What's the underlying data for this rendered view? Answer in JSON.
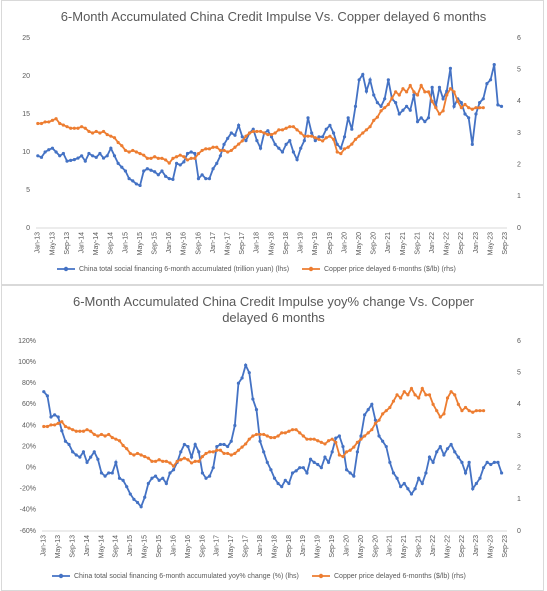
{
  "chart_data": [
    {
      "type": "line",
      "title": "6-Month Accumulated China Credit Impulse Vs. Copper delayed 6 months",
      "categories": [
        "Jan-13",
        null,
        null,
        null,
        "May-13",
        null,
        null,
        null,
        "Sep-13",
        null,
        null,
        null,
        "Jan-14",
        null,
        null,
        null,
        "May-14",
        null,
        null,
        null,
        "Sep-14",
        null,
        null,
        null,
        "Jan-15",
        null,
        null,
        null,
        "May-15",
        null,
        null,
        null,
        "Sep-15",
        null,
        null,
        null,
        "Jan-16",
        null,
        null,
        null,
        "May-16",
        null,
        null,
        null,
        "Sep-16",
        null,
        null,
        null,
        "Jan-17",
        null,
        null,
        null,
        "May-17",
        null,
        null,
        null,
        "Sep-17",
        null,
        null,
        null,
        "Jan-18",
        null,
        null,
        null,
        "May-18",
        null,
        null,
        null,
        "Sep-18",
        null,
        null,
        null,
        "Jan-19",
        null,
        null,
        null,
        "May-19",
        null,
        null,
        null,
        "Sep-19",
        null,
        null,
        null,
        "Jan-20",
        null,
        null,
        null,
        "May-20",
        null,
        null,
        null,
        "Sep-20",
        null,
        null,
        null,
        "Jan-21",
        null,
        null,
        null,
        "May-21",
        null,
        null,
        null,
        "Sep-21",
        null,
        null,
        null,
        "Jan-22",
        null,
        null,
        null,
        "May-22",
        null,
        null,
        null,
        "Sep-22",
        null,
        null,
        null,
        "Jan-23",
        null,
        null,
        null,
        "May-23",
        null,
        null,
        null,
        "Sep-23"
      ],
      "series": [
        {
          "name": "China total social financing 6-month accumulated (trillion yuan) (lhs)",
          "color": "#4472c4",
          "axis": "y",
          "values": [
            9.5,
            9.3,
            10,
            10.3,
            10.5,
            10,
            9.5,
            9.8,
            8.8,
            8.9,
            9,
            9.2,
            9.5,
            8.8,
            9.8,
            9.5,
            9.3,
            9.8,
            9.2,
            9.5,
            10.5,
            9.5,
            8.5,
            8,
            7.5,
            6.5,
            6.2,
            5.8,
            5.6,
            7.5,
            7.8,
            7.6,
            7.4,
            7,
            7.5,
            6.8,
            6.5,
            6.4,
            8.5,
            8.3,
            8.7,
            9.8,
            10,
            9.8,
            6.5,
            7,
            6.5,
            6.5,
            7.8,
            8.5,
            9.5,
            11,
            11.8,
            12.5,
            12.2,
            13.5,
            12,
            11.5,
            12.5,
            13,
            11.5,
            10.5,
            12.5,
            12.8,
            12,
            11,
            10.5,
            10,
            11,
            11.5,
            10,
            9,
            10.5,
            11.5,
            14.5,
            12.5,
            11.5,
            12,
            12,
            13,
            13.5,
            12.5,
            11,
            10.5,
            12,
            14.5,
            13,
            16,
            19.5,
            20.2,
            18,
            19.5,
            17.5,
            16.5,
            16,
            17,
            19.5,
            17,
            16.5,
            15,
            15.5,
            16,
            15.5,
            17.5,
            14,
            14.5,
            14,
            14.5,
            18.5,
            16,
            18.5,
            17,
            18,
            21,
            16,
            17,
            16.5,
            15,
            14.5,
            11,
            15,
            16.5,
            17,
            19,
            19.5,
            21.5,
            16.2,
            16,
            null
          ]
        },
        {
          "name": "Copper price delayed 6-months ($/lb) (rhs)",
          "color": "#ed7d31",
          "axis": "y2",
          "values": [
            3.3,
            3.3,
            3.35,
            3.35,
            3.4,
            3.45,
            3.3,
            3.25,
            3.2,
            3.15,
            3.15,
            3.15,
            3.2,
            3.15,
            3.05,
            3.0,
            3.05,
            3.0,
            3.05,
            2.95,
            2.9,
            2.85,
            2.7,
            2.6,
            2.45,
            2.4,
            2.45,
            2.4,
            2.35,
            2.3,
            2.2,
            2.2,
            2.25,
            2.2,
            2.2,
            2.15,
            2.05,
            2.2,
            2.25,
            2.3,
            2.25,
            2.15,
            2.2,
            2.2,
            2.35,
            2.45,
            2.5,
            2.5,
            2.55,
            2.55,
            2.45,
            2.45,
            2.4,
            2.45,
            2.55,
            2.65,
            2.75,
            2.9,
            3.0,
            3.05,
            3.05,
            3.05,
            3.0,
            2.95,
            2.95,
            3.0,
            3.1,
            3.1,
            3.15,
            3.2,
            3.2,
            3.1,
            3.0,
            2.9,
            2.9,
            2.9,
            2.85,
            2.8,
            2.75,
            2.85,
            2.9,
            2.8,
            2.4,
            2.35,
            2.5,
            2.55,
            2.65,
            2.8,
            2.9,
            3.0,
            3.1,
            3.2,
            3.4,
            3.5,
            3.7,
            3.8,
            3.9,
            4.1,
            4.3,
            4.2,
            4.4,
            4.3,
            4.5,
            4.3,
            4.2,
            4.5,
            4.3,
            4.3,
            4.0,
            3.8,
            3.6,
            3.7,
            4.2,
            4.4,
            4.3,
            4.0,
            3.8,
            3.9,
            3.8,
            3.75,
            3.8,
            3.8,
            3.8,
            null,
            null,
            null,
            null,
            null,
            null
          ]
        }
      ],
      "ylim": [
        0,
        25
      ],
      "yticks": [
        0,
        5,
        10,
        15,
        20,
        25
      ],
      "y2lim": [
        0,
        6
      ],
      "y2ticks": [
        0,
        1,
        2,
        3,
        4,
        5,
        6
      ],
      "grid": false
    },
    {
      "type": "line",
      "title": "6-Month Accumulated China Credit Impulse yoy% change Vs. Copper delayed 6 months",
      "categories": [
        "Jan-13",
        null,
        null,
        null,
        "May-13",
        null,
        null,
        null,
        "Sep-13",
        null,
        null,
        null,
        "Jan-14",
        null,
        null,
        null,
        "May-14",
        null,
        null,
        null,
        "Sep-14",
        null,
        null,
        null,
        "Jan-15",
        null,
        null,
        null,
        "May-15",
        null,
        null,
        null,
        "Sep-15",
        null,
        null,
        null,
        "Jan-16",
        null,
        null,
        null,
        "May-16",
        null,
        null,
        null,
        "Sep-16",
        null,
        null,
        null,
        "Jan-17",
        null,
        null,
        null,
        "May-17",
        null,
        null,
        null,
        "Sep-17",
        null,
        null,
        null,
        "Jan-18",
        null,
        null,
        null,
        "May-18",
        null,
        null,
        null,
        "Sep-18",
        null,
        null,
        null,
        "Jan-19",
        null,
        null,
        null,
        "May-19",
        null,
        null,
        null,
        "Sep-19",
        null,
        null,
        null,
        "Jan-20",
        null,
        null,
        null,
        "May-20",
        null,
        null,
        null,
        "Sep-20",
        null,
        null,
        null,
        "Jan-21",
        null,
        null,
        null,
        "May-21",
        null,
        null,
        null,
        "Sep-21",
        null,
        null,
        null,
        "Jan-22",
        null,
        null,
        null,
        "May-22",
        null,
        null,
        null,
        "Sep-22",
        null,
        null,
        null,
        "Jan-23",
        null,
        null,
        null,
        "May-23",
        null,
        null,
        null,
        "Sep-23"
      ],
      "series": [
        {
          "name": "China total social financing 6-month accumulated yoy% change (%) (lhs)",
          "color": "#4472c4",
          "axis": "y",
          "values": [
            72,
            68,
            48,
            50,
            48,
            35,
            25,
            22,
            15,
            12,
            10,
            15,
            5,
            10,
            15,
            8,
            -5,
            -8,
            -5,
            -5,
            5,
            -10,
            -12,
            -18,
            -25,
            -30,
            -33,
            -37,
            -28,
            -15,
            -10,
            -8,
            -12,
            -10,
            -15,
            -5,
            -2,
            5,
            15,
            22,
            20,
            10,
            22,
            15,
            -5,
            -10,
            -8,
            0,
            20,
            22,
            22,
            20,
            25,
            40,
            80,
            85,
            97,
            90,
            65,
            55,
            25,
            15,
            5,
            -2,
            -10,
            -15,
            -18,
            -12,
            -15,
            -5,
            -3,
            0,
            0,
            -5,
            8,
            5,
            3,
            0,
            10,
            5,
            15,
            28,
            30,
            20,
            -2,
            -5,
            -8,
            15,
            30,
            50,
            55,
            60,
            45,
            30,
            25,
            20,
            5,
            -5,
            -10,
            -18,
            -15,
            -20,
            -25,
            -20,
            -10,
            -15,
            -5,
            10,
            5,
            15,
            20,
            12,
            18,
            22,
            15,
            10,
            5,
            -5,
            5,
            -20,
            -15,
            -10,
            0,
            5,
            3,
            5,
            5,
            -5,
            null
          ]
        },
        {
          "name": "Copper price delayed 6-months ($/lb) (rhs)",
          "color": "#ed7d31",
          "axis": "y2",
          "values": [
            3.3,
            3.3,
            3.35,
            3.35,
            3.4,
            3.45,
            3.3,
            3.25,
            3.2,
            3.15,
            3.15,
            3.15,
            3.2,
            3.15,
            3.05,
            3.0,
            3.05,
            3.0,
            3.05,
            2.95,
            2.9,
            2.85,
            2.7,
            2.6,
            2.45,
            2.4,
            2.45,
            2.4,
            2.35,
            2.3,
            2.2,
            2.2,
            2.25,
            2.2,
            2.2,
            2.15,
            2.05,
            2.2,
            2.25,
            2.3,
            2.25,
            2.15,
            2.2,
            2.2,
            2.35,
            2.45,
            2.5,
            2.5,
            2.55,
            2.55,
            2.45,
            2.45,
            2.4,
            2.45,
            2.55,
            2.65,
            2.75,
            2.9,
            3.0,
            3.05,
            3.05,
            3.05,
            3.0,
            2.95,
            2.95,
            3.0,
            3.1,
            3.1,
            3.15,
            3.2,
            3.2,
            3.1,
            3.0,
            2.9,
            2.9,
            2.9,
            2.85,
            2.8,
            2.75,
            2.85,
            2.9,
            2.8,
            2.4,
            2.35,
            2.5,
            2.55,
            2.65,
            2.8,
            2.9,
            3.0,
            3.1,
            3.2,
            3.4,
            3.5,
            3.7,
            3.8,
            3.9,
            4.1,
            4.3,
            4.2,
            4.4,
            4.3,
            4.5,
            4.3,
            4.2,
            4.5,
            4.3,
            4.3,
            4.0,
            3.8,
            3.6,
            3.7,
            4.2,
            4.4,
            4.3,
            4.0,
            3.8,
            3.9,
            3.8,
            3.75,
            3.8,
            3.8,
            3.8,
            null,
            null,
            null,
            null,
            null,
            null
          ]
        }
      ],
      "ylim": [
        -60,
        120
      ],
      "yticks": [
        {
          "value": -60,
          "label": "-60%"
        },
        {
          "value": -40,
          "label": "-40%"
        },
        {
          "value": -20,
          "label": "-20%"
        },
        {
          "value": 0,
          "label": "0%"
        },
        {
          "value": 20,
          "label": "20%"
        },
        {
          "value": 40,
          "label": "40%"
        },
        {
          "value": 60,
          "label": "60%"
        },
        {
          "value": 80,
          "label": "80%"
        },
        {
          "value": 100,
          "label": "100%"
        },
        {
          "value": 120,
          "label": "120%"
        }
      ],
      "y2lim": [
        0,
        6
      ],
      "y2ticks": [
        0,
        1,
        2,
        3,
        4,
        5,
        6
      ],
      "grid": false
    }
  ]
}
